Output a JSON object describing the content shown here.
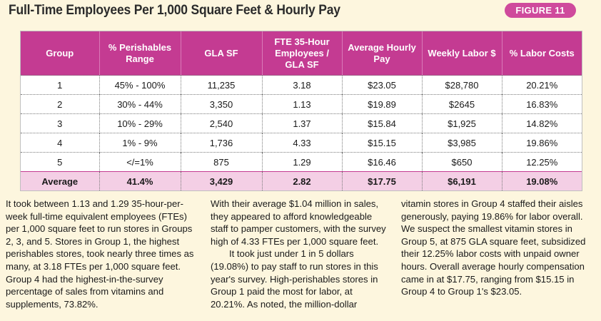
{
  "title": "Full-Time Employees Per 1,000 Square Feet & Hourly Pay",
  "figure_label": "FIGURE 11",
  "table": {
    "headers": [
      "Group",
      "% Perishables Range",
      "GLA SF",
      "FTE 35-Hour Employees / GLA SF",
      "Average Hourly Pay",
      "Weekly Labor $",
      "% Labor Costs"
    ],
    "rows": [
      [
        "1",
        "45% - 100%",
        "11,235",
        "3.18",
        "$23.05",
        "$28,780",
        "20.21%"
      ],
      [
        "2",
        "30% - 44%",
        "3,350",
        "1.13",
        "$19.89",
        "$2645",
        "16.83%"
      ],
      [
        "3",
        "10% - 29%",
        "2,540",
        "1.37",
        "$15.84",
        "$1,925",
        "14.82%"
      ],
      [
        "4",
        "1% - 9%",
        "1,736",
        "4.33",
        "$15.15",
        "$3,985",
        "19.86%"
      ],
      [
        "5",
        "</=1%",
        "875",
        "1.29",
        "$16.46",
        "$650",
        "12.25%"
      ]
    ],
    "average_row": [
      "Average",
      "41.4%",
      "3,429",
      "2.82",
      "$17.75",
      "$6,191",
      "19.08%"
    ]
  },
  "article": {
    "col1_p1": "It took between 1.13 and 1.29 35-hour-per-week full-time equivalent employees (FTEs) per 1,000 square feet to run stores in Groups 2, 3, and 5. Stores in Group 1, the highest perishables stores, took nearly three times as many, at 3.18 FTEs per 1,000 square feet. Group 4 had the highest-in-the-survey percentage of sales from vitamins and supplements, 73.82%.",
    "col2_p1": "With their average $1.04 million in sales, they appeared to afford knowledgeable staff to pamper customers, with the survey high of 4.33 FTEs per 1,000 square feet.",
    "col2_p2": "It took just under 1 in 5 dollars (19.08%) to pay staff to run stores in this year's survey. High-perishables stores in Group 1 paid the most for labor, at 20.21%. As noted, the million-dollar",
    "col3_p1": "vitamin stores in Group 4 staffed their aisles generously, paying 19.86% for labor overall. We suspect the smallest vitamin stores in Group 5, at 875 GLA square feet, subsidized their 12.25% labor costs with unpaid owner hours. Overall average hourly compensation came in at $17.75, ranging from $15.15 in Group 4 to Group 1's $23.05."
  }
}
